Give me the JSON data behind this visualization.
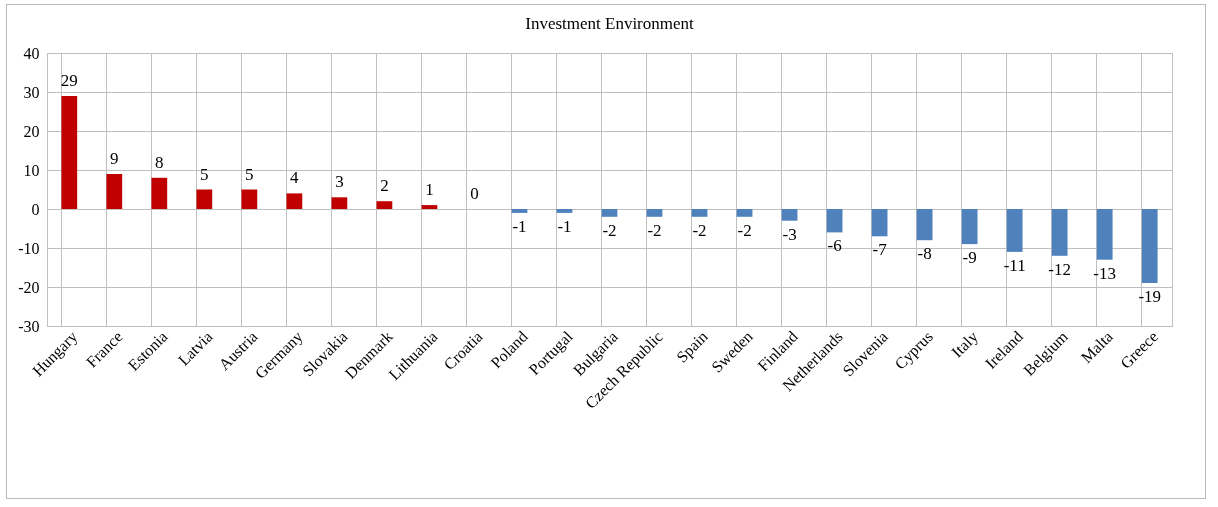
{
  "chart_data": {
    "type": "bar",
    "title": "Investment Environment",
    "categories": [
      "Hungary",
      "France",
      "Estonia",
      "Latvia",
      "Austria",
      "Germany",
      "Slovakia",
      "Denmark",
      "Lithuania",
      "Croatia",
      "Poland",
      "Portugal",
      "Bulgaria",
      "Czech Republic",
      "Spain",
      "Sweden",
      "Finland",
      "Netherlands",
      "Slovenia",
      "Cyprus",
      "Italy",
      "Ireland",
      "Belgium",
      "Malta",
      "Greece"
    ],
    "values": [
      29,
      9,
      8,
      5,
      5,
      4,
      3,
      2,
      1,
      0,
      -1,
      -1,
      -2,
      -2,
      -2,
      -2,
      -3,
      -6,
      -7,
      -8,
      -9,
      -11,
      -12,
      -13,
      -19
    ],
    "colors": [
      "#c00000",
      "#c00000",
      "#c00000",
      "#c00000",
      "#c00000",
      "#c00000",
      "#c00000",
      "#c00000",
      "#c00000",
      "#c00000",
      "#4f81bd",
      "#4f81bd",
      "#4f81bd",
      "#4f81bd",
      "#4f81bd",
      "#4f81bd",
      "#4f81bd",
      "#4f81bd",
      "#4f81bd",
      "#4f81bd",
      "#4f81bd",
      "#4f81bd",
      "#4f81bd",
      "#4f81bd",
      "#4f81bd"
    ],
    "ylim": [
      -30,
      40
    ],
    "yticks": [
      -30,
      -20,
      -10,
      0,
      10,
      20,
      30,
      40
    ],
    "grid": true,
    "data_labels": true
  }
}
